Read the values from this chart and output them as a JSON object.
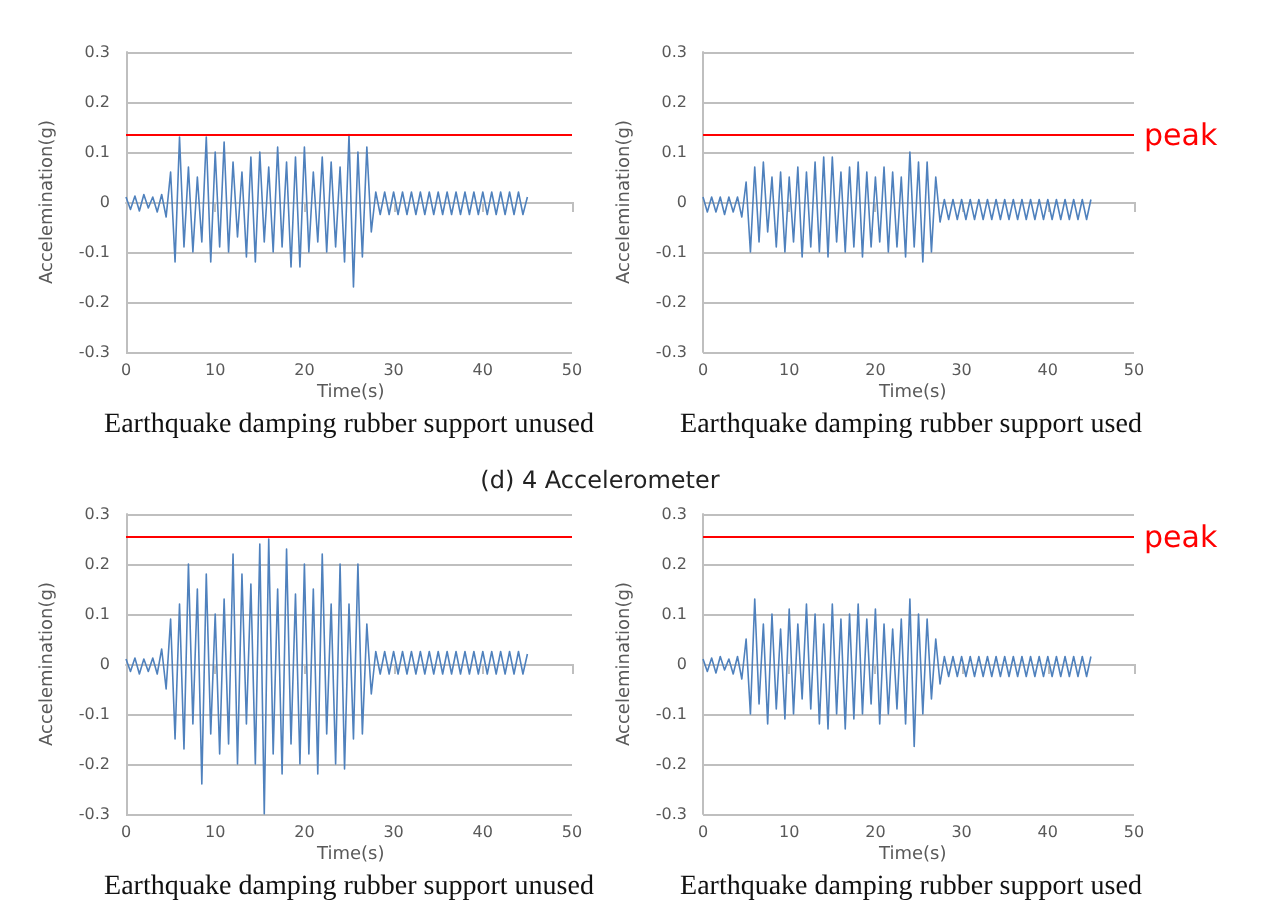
{
  "chart_data": [
    {
      "type": "line",
      "xlabel": "Time(s)",
      "ylabel": "Accelemination(g)",
      "annotations": [
        "Earthquake damping rubber support unused"
      ],
      "xlim": [
        0,
        50
      ],
      "xticks": [
        0,
        10,
        20,
        30,
        40,
        50
      ],
      "ylim": [
        -0.3,
        0.3
      ],
      "yticks": [
        -0.3,
        -0.2,
        -0.1,
        0,
        0.1,
        0.2,
        0.3
      ],
      "grid": "y",
      "ref_lines": [
        {
          "axis": "y",
          "value": 0.135,
          "color": "#ff0000"
        }
      ],
      "x": [
        0,
        0.5,
        1,
        1.5,
        2,
        2.5,
        3,
        3.5,
        4,
        4.5,
        5,
        5.5,
        6,
        6.5,
        7,
        7.5,
        8,
        8.5,
        9,
        9.5,
        10,
        10.5,
        11,
        11.5,
        12,
        12.5,
        13,
        13.5,
        14,
        14.5,
        15,
        15.5,
        16,
        16.5,
        17,
        17.5,
        18,
        18.5,
        19,
        19.5,
        20,
        20.5,
        21,
        21.5,
        22,
        22.5,
        23,
        23.5,
        24,
        24.5,
        25,
        25.5,
        26,
        26.5,
        27,
        27.5,
        28,
        28.5,
        29,
        29.5,
        30,
        30.5,
        31,
        31.5,
        32,
        32.5,
        33,
        33.5,
        34,
        34.5,
        35,
        35.5,
        36,
        36.5,
        37,
        37.5,
        38,
        38.5,
        39,
        39.5,
        40,
        40.5,
        41,
        41.5,
        42,
        42.5,
        43,
        43.5,
        44,
        44.5,
        45
      ],
      "series": [
        {
          "color": "#4f81bd",
          "values": [
            0.01,
            -0.015,
            0.012,
            -0.018,
            0.015,
            -0.012,
            0.01,
            -0.02,
            0.015,
            -0.03,
            0.06,
            -0.12,
            0.13,
            -0.09,
            0.07,
            -0.1,
            0.05,
            -0.08,
            0.13,
            -0.12,
            0.1,
            -0.09,
            0.12,
            -0.1,
            0.08,
            -0.07,
            0.06,
            -0.11,
            0.09,
            -0.12,
            0.1,
            -0.08,
            0.07,
            -0.1,
            0.11,
            -0.09,
            0.08,
            -0.13,
            0.09,
            -0.13,
            0.11,
            -0.1,
            0.06,
            -0.08,
            0.09,
            -0.1,
            0.08,
            -0.09,
            0.07,
            -0.12,
            0.135,
            -0.17,
            0.1,
            -0.11,
            0.11,
            -0.06,
            0.02,
            -0.025,
            0.02,
            -0.025,
            0.02,
            -0.025,
            0.02,
            -0.025,
            0.02,
            -0.025,
            0.02,
            -0.025,
            0.02,
            -0.025,
            0.02,
            -0.025,
            0.02,
            -0.025,
            0.02,
            -0.025,
            0.02,
            -0.025,
            0.02,
            -0.025,
            0.02,
            -0.025,
            0.02,
            -0.025,
            0.02,
            -0.025,
            0.02,
            -0.025,
            0.02,
            -0.025,
            0.01
          ]
        }
      ]
    },
    {
      "type": "line",
      "xlabel": "Time(s)",
      "ylabel": "Accelemination(g)",
      "annotations": [
        "Earthquake damping rubber support used"
      ],
      "xlim": [
        0,
        50
      ],
      "xticks": [
        0,
        10,
        20,
        30,
        40,
        50
      ],
      "ylim": [
        -0.3,
        0.3
      ],
      "yticks": [
        -0.3,
        -0.2,
        -0.1,
        0,
        0.1,
        0.2,
        0.3
      ],
      "grid": "y",
      "ref_lines": [
        {
          "axis": "y",
          "value": 0.135,
          "label": "peak",
          "color": "#ff0000"
        }
      ],
      "x": [
        0,
        0.5,
        1,
        1.5,
        2,
        2.5,
        3,
        3.5,
        4,
        4.5,
        5,
        5.5,
        6,
        6.5,
        7,
        7.5,
        8,
        8.5,
        9,
        9.5,
        10,
        10.5,
        11,
        11.5,
        12,
        12.5,
        13,
        13.5,
        14,
        14.5,
        15,
        15.5,
        16,
        16.5,
        17,
        17.5,
        18,
        18.5,
        19,
        19.5,
        20,
        20.5,
        21,
        21.5,
        22,
        22.5,
        23,
        23.5,
        24,
        24.5,
        25,
        25.5,
        26,
        26.5,
        27,
        27.5,
        28,
        28.5,
        29,
        29.5,
        30,
        30.5,
        31,
        31.5,
        32,
        32.5,
        33,
        33.5,
        34,
        34.5,
        35,
        35.5,
        36,
        36.5,
        37,
        37.5,
        38,
        38.5,
        39,
        39.5,
        40,
        40.5,
        41,
        41.5,
        42,
        42.5,
        43,
        43.5,
        44,
        44.5,
        45
      ],
      "series": [
        {
          "color": "#4f81bd",
          "values": [
            0.01,
            -0.02,
            0.01,
            -0.02,
            0.01,
            -0.025,
            0.01,
            -0.02,
            0.01,
            -0.03,
            0.04,
            -0.1,
            0.07,
            -0.08,
            0.08,
            -0.06,
            0.05,
            -0.09,
            0.06,
            -0.1,
            0.05,
            -0.08,
            0.07,
            -0.11,
            0.06,
            -0.09,
            0.08,
            -0.1,
            0.09,
            -0.11,
            0.09,
            -0.08,
            0.06,
            -0.1,
            0.07,
            -0.09,
            0.08,
            -0.11,
            0.06,
            -0.09,
            0.05,
            -0.08,
            0.07,
            -0.1,
            0.06,
            -0.09,
            0.05,
            -0.11,
            0.1,
            -0.09,
            0.08,
            -0.12,
            0.08,
            -0.1,
            0.05,
            -0.04,
            0.005,
            -0.035,
            0.005,
            -0.035,
            0.005,
            -0.035,
            0.005,
            -0.035,
            0.005,
            -0.035,
            0.005,
            -0.035,
            0.005,
            -0.035,
            0.005,
            -0.035,
            0.005,
            -0.035,
            0.005,
            -0.035,
            0.005,
            -0.035,
            0.005,
            -0.035,
            0.005,
            -0.035,
            0.005,
            -0.035,
            0.005,
            -0.035,
            0.005,
            -0.035,
            0.005,
            -0.035,
            0.005
          ]
        }
      ]
    },
    {
      "type": "line",
      "title": "(d) 4 Accelerometer",
      "xlabel": "Time(s)",
      "ylabel": "Accelemination(g)",
      "annotations": [
        "Earthquake damping rubber support unused"
      ],
      "xlim": [
        0,
        50
      ],
      "xticks": [
        0,
        10,
        20,
        30,
        40,
        50
      ],
      "ylim": [
        -0.3,
        0.3
      ],
      "yticks": [
        -0.3,
        -0.2,
        -0.1,
        0,
        0.1,
        0.2,
        0.3
      ],
      "grid": "y",
      "ref_lines": [
        {
          "axis": "y",
          "value": 0.255,
          "color": "#ff0000"
        }
      ],
      "x": [
        0,
        0.5,
        1,
        1.5,
        2,
        2.5,
        3,
        3.5,
        4,
        4.5,
        5,
        5.5,
        6,
        6.5,
        7,
        7.5,
        8,
        8.5,
        9,
        9.5,
        10,
        10.5,
        11,
        11.5,
        12,
        12.5,
        13,
        13.5,
        14,
        14.5,
        15,
        15.5,
        16,
        16.5,
        17,
        17.5,
        18,
        18.5,
        19,
        19.5,
        20,
        20.5,
        21,
        21.5,
        22,
        22.5,
        23,
        23.5,
        24,
        24.5,
        25,
        25.5,
        26,
        26.5,
        27,
        27.5,
        28,
        28.5,
        29,
        29.5,
        30,
        30.5,
        31,
        31.5,
        32,
        32.5,
        33,
        33.5,
        34,
        34.5,
        35,
        35.5,
        36,
        36.5,
        37,
        37.5,
        38,
        38.5,
        39,
        39.5,
        40,
        40.5,
        41,
        41.5,
        42,
        42.5,
        43,
        43.5,
        44,
        44.5,
        45
      ],
      "series": [
        {
          "color": "#4f81bd",
          "values": [
            0.01,
            -0.015,
            0.012,
            -0.02,
            0.01,
            -0.015,
            0.012,
            -0.02,
            0.03,
            -0.05,
            0.09,
            -0.15,
            0.12,
            -0.17,
            0.2,
            -0.12,
            0.15,
            -0.24,
            0.18,
            -0.14,
            0.1,
            -0.18,
            0.13,
            -0.16,
            0.22,
            -0.2,
            0.18,
            -0.12,
            0.16,
            -0.2,
            0.24,
            -0.3,
            0.25,
            -0.18,
            0.15,
            -0.22,
            0.23,
            -0.16,
            0.14,
            -0.2,
            0.2,
            -0.18,
            0.15,
            -0.22,
            0.22,
            -0.14,
            0.12,
            -0.2,
            0.2,
            -0.21,
            0.12,
            -0.15,
            0.2,
            -0.14,
            0.08,
            -0.06,
            0.025,
            -0.02,
            0.025,
            -0.02,
            0.025,
            -0.02,
            0.025,
            -0.02,
            0.025,
            -0.02,
            0.025,
            -0.02,
            0.025,
            -0.02,
            0.025,
            -0.02,
            0.025,
            -0.02,
            0.025,
            -0.02,
            0.025,
            -0.02,
            0.025,
            -0.02,
            0.025,
            -0.02,
            0.025,
            -0.02,
            0.025,
            -0.02,
            0.025,
            -0.02,
            0.025,
            -0.02,
            0.02
          ]
        }
      ]
    },
    {
      "type": "line",
      "xlabel": "Time(s)",
      "ylabel": "Accelemination(g)",
      "annotations": [
        "Earthquake damping rubber support used"
      ],
      "xlim": [
        0,
        50
      ],
      "xticks": [
        0,
        10,
        20,
        30,
        40,
        50
      ],
      "ylim": [
        -0.3,
        0.3
      ],
      "yticks": [
        -0.3,
        -0.2,
        -0.1,
        0,
        0.1,
        0.2,
        0.3
      ],
      "grid": "y",
      "ref_lines": [
        {
          "axis": "y",
          "value": 0.255,
          "label": "peak",
          "color": "#ff0000"
        }
      ],
      "x": [
        0,
        0.5,
        1,
        1.5,
        2,
        2.5,
        3,
        3.5,
        4,
        4.5,
        5,
        5.5,
        6,
        6.5,
        7,
        7.5,
        8,
        8.5,
        9,
        9.5,
        10,
        10.5,
        11,
        11.5,
        12,
        12.5,
        13,
        13.5,
        14,
        14.5,
        15,
        15.5,
        16,
        16.5,
        17,
        17.5,
        18,
        18.5,
        19,
        19.5,
        20,
        20.5,
        21,
        21.5,
        22,
        22.5,
        23,
        23.5,
        24,
        24.5,
        25,
        25.5,
        26,
        26.5,
        27,
        27.5,
        28,
        28.5,
        29,
        29.5,
        30,
        30.5,
        31,
        31.5,
        32,
        32.5,
        33,
        33.5,
        34,
        34.5,
        35,
        35.5,
        36,
        36.5,
        37,
        37.5,
        38,
        38.5,
        39,
        39.5,
        40,
        40.5,
        41,
        41.5,
        42,
        42.5,
        43,
        43.5,
        44,
        44.5,
        45
      ],
      "series": [
        {
          "color": "#4f81bd",
          "values": [
            0.01,
            -0.015,
            0.012,
            -0.018,
            0.015,
            -0.012,
            0.01,
            -0.02,
            0.015,
            -0.03,
            0.05,
            -0.1,
            0.13,
            -0.08,
            0.08,
            -0.12,
            0.1,
            -0.09,
            0.07,
            -0.11,
            0.11,
            -0.1,
            0.08,
            -0.07,
            0.12,
            -0.09,
            0.1,
            -0.12,
            0.08,
            -0.13,
            0.12,
            -0.1,
            0.09,
            -0.13,
            0.1,
            -0.11,
            0.12,
            -0.1,
            0.09,
            -0.08,
            0.11,
            -0.12,
            0.08,
            -0.1,
            0.07,
            -0.09,
            0.09,
            -0.12,
            0.13,
            -0.165,
            0.1,
            -0.1,
            0.09,
            -0.07,
            0.05,
            -0.04,
            0.015,
            -0.025,
            0.015,
            -0.025,
            0.015,
            -0.025,
            0.015,
            -0.025,
            0.015,
            -0.025,
            0.015,
            -0.025,
            0.015,
            -0.025,
            0.015,
            -0.025,
            0.015,
            -0.025,
            0.015,
            -0.025,
            0.015,
            -0.025,
            0.015,
            -0.025,
            0.015,
            -0.025,
            0.015,
            -0.025,
            0.015,
            -0.025,
            0.015,
            -0.025,
            0.015,
            -0.025,
            0.015
          ]
        }
      ]
    }
  ]
}
